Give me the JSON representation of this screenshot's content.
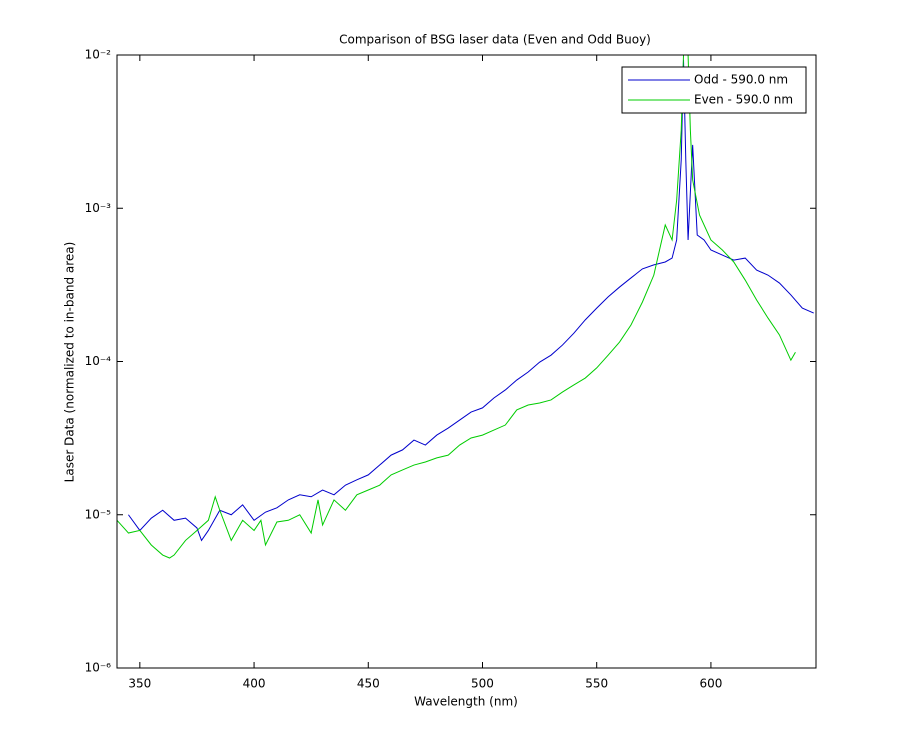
{
  "chart_data": {
    "type": "line",
    "title": "Comparison of BSG laser data (Even and Odd Buoy)",
    "x_label": "Wavelength (nm)",
    "y_label": "Laser Data (normalized to in-band area)",
    "yscale": "log",
    "xlim": [
      340,
      646
    ],
    "ylim": [
      1e-06,
      0.01
    ],
    "xticks": [
      350,
      400,
      450,
      500,
      550,
      600
    ],
    "yticks": [
      {
        "value": 1e-06,
        "label": "10⁻⁶"
      },
      {
        "value": 1e-05,
        "label": "10⁻⁵"
      },
      {
        "value": 0.0001,
        "label": "10⁻⁴"
      },
      {
        "value": 0.001,
        "label": "10⁻³"
      },
      {
        "value": 0.01,
        "label": "10⁻²"
      }
    ],
    "legend": "upper right",
    "series": [
      {
        "name": "Odd - 590.0 nm",
        "color": "#0000cc",
        "x": [
          345,
          350,
          355,
          360,
          365,
          370,
          375,
          377,
          380,
          385,
          390,
          395,
          400,
          405,
          410,
          415,
          420,
          425,
          430,
          435,
          440,
          445,
          450,
          455,
          460,
          465,
          470,
          475,
          480,
          485,
          490,
          495,
          500,
          505,
          510,
          515,
          520,
          525,
          530,
          535,
          540,
          545,
          550,
          555,
          560,
          565,
          570,
          575,
          580,
          583,
          585,
          587,
          588,
          589,
          590,
          592,
          594,
          597,
          600,
          605,
          610,
          615,
          620,
          625,
          630,
          635,
          640,
          645
        ],
        "values": [
          1e-05,
          7.9e-06,
          9.5e-06,
          1.07e-05,
          9.2e-06,
          9.5e-06,
          8.2e-06,
          6.8e-06,
          7.9e-06,
          1.07e-05,
          1e-05,
          1.16e-05,
          9.2e-06,
          1.04e-05,
          1.11e-05,
          1.25e-05,
          1.35e-05,
          1.31e-05,
          1.45e-05,
          1.35e-05,
          1.56e-05,
          1.69e-05,
          1.82e-05,
          2.11e-05,
          2.45e-05,
          2.65e-05,
          3.07e-05,
          2.85e-05,
          3.31e-05,
          3.68e-05,
          4.15e-05,
          4.68e-05,
          4.98e-05,
          5.78e-05,
          6.52e-05,
          7.57e-05,
          8.54e-05,
          9.9e-05,
          0.00011,
          0.000128,
          0.000153,
          0.000187,
          0.000223,
          0.000264,
          0.000306,
          0.000351,
          0.000402,
          0.000427,
          0.000446,
          0.000473,
          0.000621,
          0.00207,
          0.0093,
          0.00207,
          0.000621,
          0.00259,
          0.000669,
          0.000621,
          0.000534,
          0.000495,
          0.000459,
          0.000473,
          0.000395,
          0.000366,
          0.000325,
          0.000272,
          0.000223,
          0.000207
        ]
      },
      {
        "name": "Even - 590.0 nm",
        "color": "#00cc00",
        "x": [
          340,
          345,
          350,
          355,
          360,
          363,
          365,
          370,
          375,
          380,
          383,
          385,
          390,
          395,
          400,
          403,
          405,
          410,
          415,
          420,
          425,
          428,
          430,
          435,
          440,
          445,
          450,
          455,
          460,
          465,
          470,
          475,
          480,
          485,
          490,
          495,
          500,
          505,
          510,
          515,
          520,
          525,
          530,
          535,
          540,
          545,
          550,
          555,
          560,
          565,
          570,
          575,
          578,
          580,
          583,
          585,
          587,
          588,
          590,
          591,
          592,
          595,
          600,
          605,
          610,
          615,
          620,
          625,
          630,
          635,
          637
        ],
        "values": [
          9.2e-06,
          7.6e-06,
          7.9e-06,
          6.35e-06,
          5.46e-06,
          5.22e-06,
          5.46e-06,
          6.8e-06,
          7.9e-06,
          9.2e-06,
          1.31e-05,
          1.07e-05,
          6.8e-06,
          9.2e-06,
          7.9e-06,
          9.2e-06,
          6.35e-06,
          8.97e-06,
          9.2e-06,
          1e-05,
          7.6e-06,
          1.25e-05,
          8.57e-06,
          1.25e-05,
          1.07e-05,
          1.35e-05,
          1.45e-05,
          1.56e-05,
          1.82e-05,
          1.96e-05,
          2.11e-05,
          2.21e-05,
          2.35e-05,
          2.45e-05,
          2.85e-05,
          3.17e-05,
          3.31e-05,
          3.57e-05,
          3.85e-05,
          4.83e-05,
          5.2e-05,
          5.36e-05,
          5.61e-05,
          6.32e-05,
          7.03e-05,
          7.8e-05,
          9.08e-05,
          0.00011,
          0.000134,
          0.000173,
          0.000244,
          0.000366,
          0.000576,
          0.000778,
          0.000621,
          0.00113,
          0.00324,
          0.01,
          0.01,
          0.00324,
          0.00153,
          0.000904,
          0.000621,
          0.000534,
          0.000446,
          0.00034,
          0.000252,
          0.000192,
          0.000149,
          0.000102,
          0.000115
        ]
      }
    ]
  }
}
